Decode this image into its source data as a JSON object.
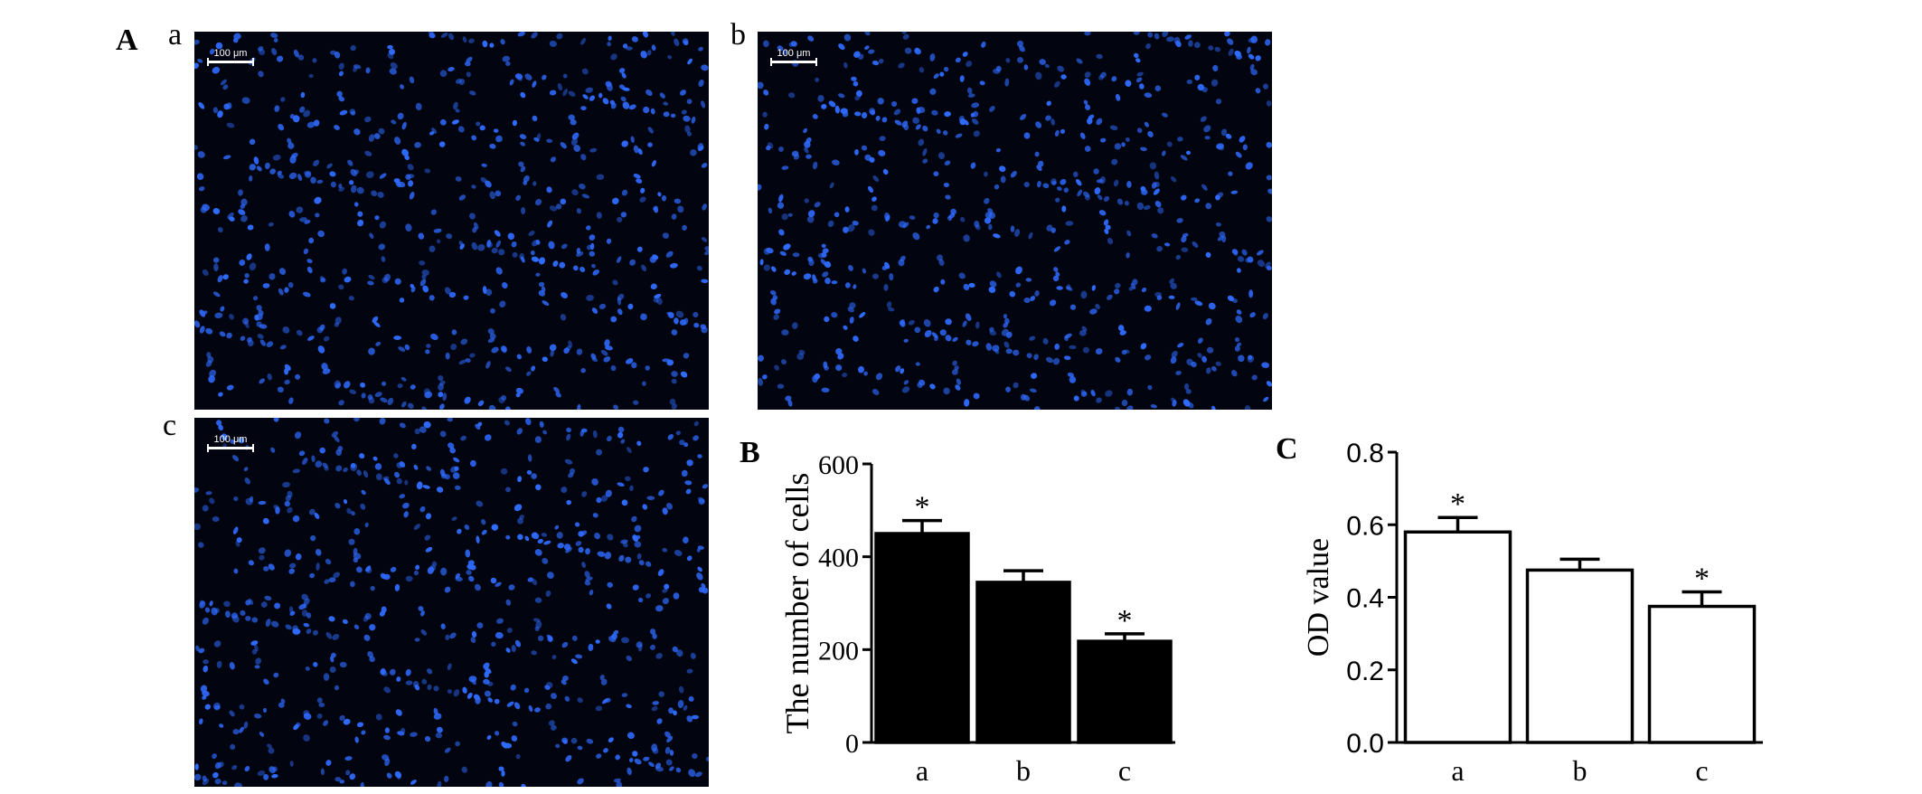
{
  "panel_A": {
    "label": "A",
    "images": [
      {
        "label": "a",
        "scale_bar": "100 μm"
      },
      {
        "label": "b",
        "scale_bar": "100 μm"
      },
      {
        "label": "c",
        "scale_bar": "100 μm"
      }
    ],
    "colors": {
      "background": "#020510",
      "nucleus": "#2f6bff"
    }
  },
  "panel_B": {
    "label": "B"
  },
  "panel_C": {
    "label": "C"
  },
  "chart_data": [
    {
      "type": "bar",
      "panel": "B",
      "title": "",
      "xlabel": "",
      "ylabel": "The number of cells",
      "categories": [
        "a",
        "b",
        "c"
      ],
      "values": [
        450,
        345,
        218
      ],
      "error": [
        28,
        25,
        16
      ],
      "significance": [
        "*",
        "",
        "*"
      ],
      "ylim": [
        0,
        600
      ],
      "yticks": [
        "0",
        "200",
        "400",
        "600"
      ],
      "bar_fill": "#000000",
      "grid": false
    },
    {
      "type": "bar",
      "panel": "C",
      "title": "",
      "xlabel": "",
      "ylabel": "OD value",
      "categories": [
        "a",
        "b",
        "c"
      ],
      "values": [
        0.58,
        0.475,
        0.375
      ],
      "error": [
        0.04,
        0.03,
        0.04
      ],
      "significance": [
        "*",
        "",
        "*"
      ],
      "ylim": [
        0,
        0.8
      ],
      "yticks": [
        "0.0",
        "0.2",
        "0.4",
        "0.6",
        "0.8"
      ],
      "bar_fill": "#ffffff",
      "grid": false
    }
  ]
}
